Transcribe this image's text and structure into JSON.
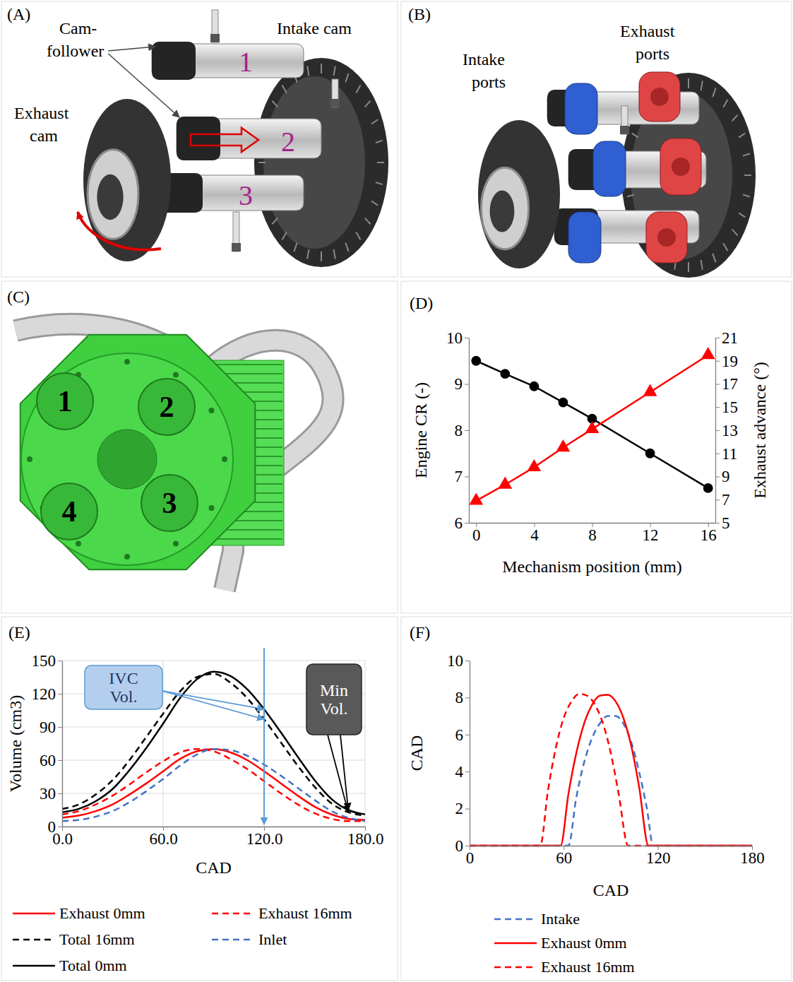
{
  "illustrations": [
    {
      "panel": "(A)",
      "cam_follower": [
        "Cam-",
        "follower"
      ],
      "intake_cam": "Intake cam",
      "exhaust_cam": [
        "Exhaust",
        "cam"
      ],
      "cylinder_numbers": [
        "1",
        "2",
        "3"
      ]
    },
    {
      "panel": "(B)",
      "intake_ports": [
        "Intake",
        "ports"
      ],
      "exhaust_ports": [
        "Exhaust",
        "ports"
      ]
    },
    {
      "panel": "(C)",
      "cylinder_numbers": [
        "1",
        "2",
        "3",
        "4"
      ]
    }
  ],
  "chart_data": [
    {
      "panel": "(D)",
      "type": "line",
      "x_label": "Mechanism position (mm)",
      "y_label": "Engine CR (-)",
      "y2_label": "Exhaust advance (°)",
      "x": [
        0,
        2,
        4,
        6,
        8,
        12,
        16
      ],
      "xlim": [
        -0.5,
        16.5
      ],
      "xticks": [
        0,
        4,
        8,
        12,
        16
      ],
      "ylim": [
        6,
        10
      ],
      "yticks": [
        6,
        7,
        8,
        9,
        10
      ],
      "y2lim": [
        5,
        21
      ],
      "y2ticks": [
        5,
        7,
        9,
        11,
        13,
        15,
        17,
        19,
        21
      ],
      "grid": false,
      "series": [
        {
          "color": "#000000",
          "marker": "circle",
          "line_style": "solid",
          "values": [
            9.5,
            9.22,
            8.95,
            8.6,
            8.25,
            7.5,
            6.75
          ]
        },
        {
          "color": "#ff0000",
          "marker": "triangle",
          "line_style": "solid",
          "axis": "y2",
          "values": [
            6.9,
            8.3,
            9.8,
            11.5,
            13.1,
            16.3,
            19.5
          ]
        }
      ]
    },
    {
      "panel": "(E)",
      "type": "line",
      "x_label": "CAD",
      "y_label": "Volume (cm3)",
      "x": [
        0,
        10,
        20,
        30,
        40,
        50,
        60,
        70,
        80,
        90,
        100,
        110,
        120,
        130,
        140,
        150,
        160,
        170,
        180
      ],
      "xlim": [
        0,
        180
      ],
      "xticks": [
        {
          "value": 0,
          "label": "0.0"
        },
        {
          "value": 60,
          "label": "60.0"
        },
        {
          "value": 120,
          "label": "120.0"
        },
        {
          "value": 180,
          "label": "180.0"
        }
      ],
      "ylim": [
        0,
        150
      ],
      "yticks": [
        0,
        30,
        60,
        90,
        120,
        150
      ],
      "grid": true,
      "legend": "bottom",
      "series": [
        {
          "name": "Exhaust 0mm",
          "color": "#ff0000",
          "line_style": "solid",
          "values": [
            8,
            10,
            14,
            20,
            29,
            39,
            50,
            61,
            68,
            70,
            67,
            60,
            50,
            39,
            28,
            18,
            11,
            7,
            6
          ]
        },
        {
          "name": "Exhaust 16mm",
          "color": "#ff0000",
          "line_style": "dashed",
          "values": [
            11,
            14,
            20,
            28,
            38,
            49,
            59,
            67,
            70,
            68,
            61,
            52,
            41,
            30,
            20,
            12,
            7,
            5,
            5
          ]
        },
        {
          "name": "Total 16mm",
          "color": "#000000",
          "line_style": "dashed",
          "values": [
            16,
            20,
            29,
            42,
            60,
            81,
            102,
            122,
            135,
            138,
            130,
            116,
            97,
            76,
            55,
            36,
            21,
            13,
            10
          ]
        },
        {
          "name": "Inlet",
          "color": "#4472c4",
          "line_style": "dashed",
          "values": [
            5,
            6,
            9,
            14,
            22,
            32,
            43,
            55,
            65,
            70,
            69,
            64,
            56,
            46,
            35,
            24,
            14,
            8,
            5
          ]
        },
        {
          "name": "Total 0mm",
          "color": "#000000",
          "line_style": "solid",
          "values": [
            13,
            16,
            23,
            34,
            51,
            71,
            93,
            116,
            133,
            140,
            136,
            124,
            106,
            85,
            63,
            42,
            25,
            15,
            11
          ]
        }
      ],
      "annotations": [
        {
          "text": "IVC Vol.",
          "x": 120
        },
        {
          "text": "Min Vol.",
          "x": 170
        }
      ]
    },
    {
      "panel": "(F)",
      "type": "line",
      "x_label": "CAD",
      "y_label": "CAD",
      "xlim": [
        0,
        180
      ],
      "xticks": [
        0,
        60,
        120,
        180
      ],
      "ylim": [
        0,
        10
      ],
      "yticks": [
        0,
        2,
        4,
        6,
        8,
        10
      ],
      "grid": false,
      "legend": "bottom",
      "series": [
        {
          "name": "Intake",
          "color": "#4472c4",
          "line_style": "dashed",
          "x": [
            0,
            63,
            68,
            73,
            78,
            83,
            88,
            93,
            98,
            103,
            108,
            113,
            117,
            180
          ],
          "values": [
            0,
            0,
            2.6,
            4.5,
            5.8,
            6.6,
            7,
            7,
            6.6,
            5.6,
            4,
            2,
            0,
            0
          ]
        },
        {
          "name": "Exhaust 0mm",
          "color": "#ff0000",
          "line_style": "solid",
          "x": [
            0,
            58,
            63,
            68,
            73,
            78,
            83,
            88,
            93,
            98,
            103,
            108,
            114,
            180
          ],
          "values": [
            0,
            0,
            2.8,
            5,
            6.6,
            7.6,
            8.1,
            8.15,
            7.8,
            6.9,
            5.4,
            3.2,
            0,
            0
          ]
        },
        {
          "name": "Exhaust 16mm",
          "color": "#ff0000",
          "line_style": "dashed",
          "x": [
            0,
            45,
            50,
            55,
            60,
            65,
            70,
            75,
            80,
            85,
            90,
            95,
            101,
            180
          ],
          "values": [
            0,
            0,
            3,
            5.3,
            6.9,
            7.8,
            8.2,
            8.1,
            7.6,
            6.6,
            5,
            2.8,
            0,
            0
          ]
        }
      ]
    }
  ]
}
